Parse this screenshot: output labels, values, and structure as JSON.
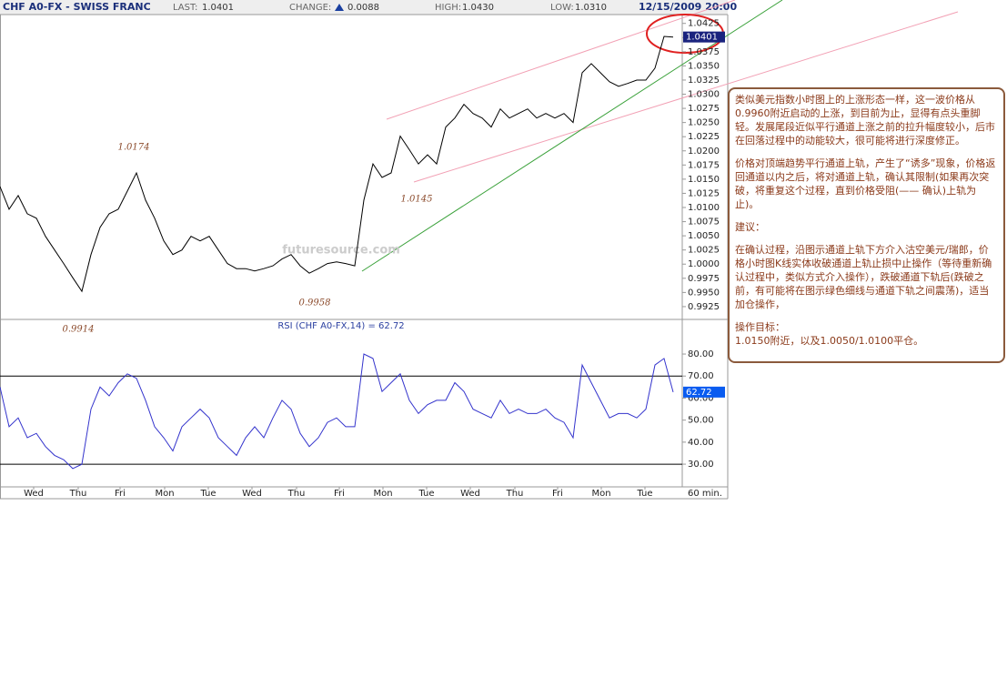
{
  "header": {
    "title": "CHF A0-FX - SWISS FRANC",
    "last": {
      "label": "LAST:",
      "value": "1.0401"
    },
    "change": {
      "label": "CHANGE:",
      "value": "0.0088"
    },
    "high": {
      "label": "HIGH:",
      "value": "1.0430"
    },
    "low": {
      "label": "LOW:",
      "value": "1.0310"
    },
    "datetime": "12/15/2009 20:00"
  },
  "chart_data": [
    {
      "type": "line",
      "color": "#000000",
      "watermark": "futuresource.com",
      "values": [
        1.0137,
        1.0097,
        1.0121,
        1.0089,
        1.0081,
        1.0049,
        1.0025,
        1.0001,
        0.9976,
        0.9952,
        1.0017,
        1.0065,
        1.0089,
        1.0097,
        1.0129,
        1.0161,
        1.0113,
        1.0081,
        1.0041,
        1.0017,
        1.0025,
        1.0049,
        1.0041,
        1.0049,
        1.0025,
        1.0001,
        0.9992,
        0.9992,
        0.9988,
        0.9992,
        0.9997,
        1.0009,
        1.0017,
        0.9997,
        0.9984,
        0.9992,
        1.0001,
        1.0004,
        1.0001,
        0.9997,
        1.0113,
        1.0177,
        1.0153,
        1.0161,
        1.0226,
        1.0202,
        1.0177,
        1.0193,
        1.0177,
        1.0242,
        1.0258,
        1.0282,
        1.0266,
        1.0258,
        1.0242,
        1.0274,
        1.0258,
        1.0266,
        1.0274,
        1.0258,
        1.0266,
        1.0258,
        1.0266,
        1.025,
        1.0338,
        1.0354,
        1.0338,
        1.0322,
        1.0314,
        1.0319,
        1.0325,
        1.0325,
        1.0346,
        1.0402,
        1.0401
      ],
      "xlim": [
        0,
        75
      ],
      "ylim": [
        0.9904,
        1.0439
      ],
      "yticks": [
        0.9925,
        {
          "value": 0.995,
          "label": "0.9950"
        },
        0.9975,
        {
          "value": 1.0,
          "label": "1.0000"
        },
        1.0025,
        {
          "value": 1.005,
          "label": "1.0050"
        },
        1.0075,
        {
          "value": 1.01,
          "label": "1.0100"
        },
        1.0125,
        {
          "value": 1.015,
          "label": "1.0150"
        },
        1.0175,
        {
          "value": 1.02,
          "label": "1.0200"
        },
        1.0225,
        {
          "value": 1.025,
          "label": "1.0250"
        },
        1.0275,
        {
          "value": 1.03,
          "label": "1.0300"
        },
        1.0325,
        {
          "value": 1.035,
          "label": "1.0350"
        },
        1.0375,
        {
          "value": 1.04,
          "label": "1.0400"
        },
        1.0425
      ],
      "annotations": [
        "1.0174",
        "1.0145",
        "0.9958",
        "0.9914"
      ]
    },
    {
      "type": "line",
      "color": "#3333cc",
      "title": "RSI (CHF A0-FX,14) = 62.72",
      "last_label": "62.72",
      "values": [
        65,
        47,
        51,
        42,
        44,
        38,
        34,
        32,
        28,
        30,
        55,
        65,
        61,
        67,
        71,
        69,
        59,
        47,
        42,
        36,
        47,
        51,
        55,
        51,
        42,
        38,
        34,
        42,
        47,
        42,
        51,
        59,
        55,
        44,
        38,
        42,
        49,
        51,
        47,
        47,
        80,
        78,
        63,
        67,
        71,
        59,
        53,
        57,
        59,
        59,
        67,
        63,
        55,
        53,
        51,
        59,
        53,
        55,
        53,
        53,
        55,
        51,
        49,
        42,
        75,
        67,
        59,
        51,
        53,
        53,
        51,
        55,
        75,
        78,
        62.72
      ],
      "xlim": [
        0,
        75
      ],
      "ylim": [
        19.7,
        95.3
      ],
      "yticks": [
        {
          "value": 30,
          "label": "30.00"
        },
        {
          "value": 40,
          "label": "40.00"
        },
        {
          "value": 50,
          "label": "50.00"
        },
        {
          "value": 60,
          "label": "60.00"
        },
        {
          "value": 70,
          "label": "70.00"
        },
        {
          "value": 80,
          "label": "80.00"
        }
      ],
      "levels": [
        70,
        30
      ],
      "xticks": [
        {
          "value": 3.7,
          "label": "Wed"
        },
        {
          "value": 8.6,
          "label": "Thu"
        },
        {
          "value": 13.2,
          "label": "Fri"
        },
        {
          "value": 18.1,
          "label": "Mon"
        },
        {
          "value": 22.9,
          "label": "Tue"
        },
        {
          "value": 27.7,
          "label": "Wed"
        },
        {
          "value": 32.6,
          "label": "Thu"
        },
        {
          "value": 37.3,
          "label": "Fri"
        },
        {
          "value": 42.1,
          "label": "Mon"
        },
        {
          "value": 46.9,
          "label": "Tue"
        },
        {
          "value": 51.7,
          "label": "Wed"
        },
        {
          "value": 56.6,
          "label": "Thu"
        },
        {
          "value": 61.3,
          "label": "Fri"
        },
        {
          "value": 66.1,
          "label": "Mon"
        },
        {
          "value": 70.9,
          "label": "Tue"
        }
      ],
      "xlabel": "60 min."
    }
  ],
  "commentary": {
    "paragraphs": [
      "类似美元指数小时图上的上涨形态一样，这一波价格从0.9960附近启动的上涨，到目前为止，显得有点头重脚轻。发展尾段近似平行通道上涨之前的拉升幅度较小，后市在回落过程中的动能较大，很可能将进行深度修正。",
      "价格对顶端趋势平行通道上轨，产生了“诱多”现象，价格返回通道以内之后，将对通道上轨，确认其限制(如果再次突破，将重复这个过程，直到价格受阻(—— 确认)上轨为止)。",
      "建议：",
      "在确认过程，沿图示通道上轨下方介入沽空美元/瑞郎，价格小时图K线实体收破通道上轨止损中止操作（等待重新确认过程中，类似方式介入操作），跌破通道下轨后(跌破之前，有可能将在图示绿色细线与通道下轨之间震荡)，适当加仓操作，",
      "操作目标：",
      "1.0150附近，以及1.0050/1.0100平仓。"
    ]
  }
}
